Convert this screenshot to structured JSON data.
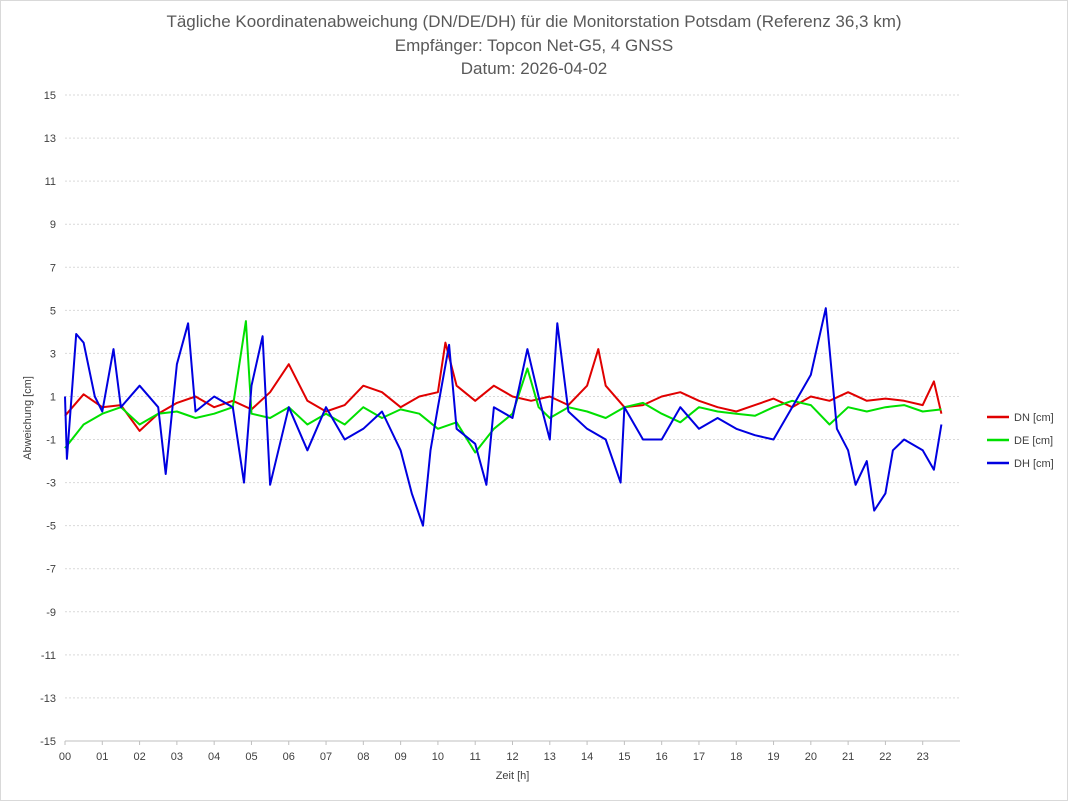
{
  "chart_data": {
    "type": "line",
    "title": "Tägliche Koordinatenabweichung (DN/DE/DH) für die Monitorstation Potsdam (Referenz 36,3 km)",
    "subtitle": "Empfänger: Topcon Net-G5, 4 GNSS",
    "date_line": "Datum: 2026-04-02",
    "xlabel": "Zeit [h]",
    "ylabel": "Abweichung [cm]",
    "xlim": [
      0,
      24
    ],
    "ylim": [
      -15,
      15
    ],
    "x_ticks": [
      "00",
      "01",
      "02",
      "03",
      "04",
      "05",
      "06",
      "07",
      "08",
      "09",
      "10",
      "11",
      "12",
      "13",
      "14",
      "15",
      "16",
      "17",
      "18",
      "19",
      "20",
      "21",
      "22",
      "23"
    ],
    "y_ticks": [
      "15",
      "13",
      "11",
      "9",
      "7",
      "5",
      "3",
      "1",
      "-1",
      "-3",
      "-5",
      "-7",
      "-9",
      "-11",
      "-13",
      "-15"
    ],
    "grid": true,
    "legend_position": "right",
    "series": [
      {
        "name": "DN [cm]",
        "color": "#e00000",
        "points": [
          [
            0,
            0.1
          ],
          [
            0.5,
            1.1
          ],
          [
            1,
            0.5
          ],
          [
            1.5,
            0.6
          ],
          [
            2,
            -0.6
          ],
          [
            2.5,
            0.2
          ],
          [
            3,
            0.7
          ],
          [
            3.5,
            1.0
          ],
          [
            4,
            0.5
          ],
          [
            4.5,
            0.8
          ],
          [
            5,
            0.4
          ],
          [
            5.5,
            1.2
          ],
          [
            6,
            2.5
          ],
          [
            6.5,
            0.8
          ],
          [
            7,
            0.3
          ],
          [
            7.5,
            0.6
          ],
          [
            8,
            1.5
          ],
          [
            8.5,
            1.2
          ],
          [
            9,
            0.5
          ],
          [
            9.5,
            1.0
          ],
          [
            10,
            1.2
          ],
          [
            10.2,
            3.5
          ],
          [
            10.5,
            1.5
          ],
          [
            11,
            0.8
          ],
          [
            11.5,
            1.5
          ],
          [
            12,
            1.0
          ],
          [
            12.5,
            0.8
          ],
          [
            13,
            1.0
          ],
          [
            13.5,
            0.6
          ],
          [
            14,
            1.5
          ],
          [
            14.3,
            3.2
          ],
          [
            14.5,
            1.5
          ],
          [
            15,
            0.5
          ],
          [
            15.5,
            0.6
          ],
          [
            16,
            1.0
          ],
          [
            16.5,
            1.2
          ],
          [
            17,
            0.8
          ],
          [
            17.5,
            0.5
          ],
          [
            18,
            0.3
          ],
          [
            18.5,
            0.6
          ],
          [
            19,
            0.9
          ],
          [
            19.5,
            0.5
          ],
          [
            20,
            1.0
          ],
          [
            20.5,
            0.8
          ],
          [
            21,
            1.2
          ],
          [
            21.5,
            0.8
          ],
          [
            22,
            0.9
          ],
          [
            22.5,
            0.8
          ],
          [
            23,
            0.6
          ],
          [
            23.3,
            1.7
          ],
          [
            23.5,
            0.2
          ]
        ]
      },
      {
        "name": "DE [cm]",
        "color": "#00e000",
        "points": [
          [
            0,
            -1.4
          ],
          [
            0.5,
            -0.3
          ],
          [
            1,
            0.2
          ],
          [
            1.5,
            0.5
          ],
          [
            2,
            -0.3
          ],
          [
            2.5,
            0.2
          ],
          [
            3,
            0.3
          ],
          [
            3.5,
            0.0
          ],
          [
            4,
            0.2
          ],
          [
            4.5,
            0.5
          ],
          [
            4.85,
            4.5
          ],
          [
            5,
            0.2
          ],
          [
            5.5,
            0.0
          ],
          [
            6,
            0.5
          ],
          [
            6.5,
            -0.3
          ],
          [
            7,
            0.2
          ],
          [
            7.5,
            -0.3
          ],
          [
            8,
            0.5
          ],
          [
            8.5,
            0.0
          ],
          [
            9,
            0.4
          ],
          [
            9.5,
            0.2
          ],
          [
            10,
            -0.5
          ],
          [
            10.5,
            -0.2
          ],
          [
            11,
            -1.6
          ],
          [
            11.5,
            -0.5
          ],
          [
            12,
            0.2
          ],
          [
            12.4,
            2.3
          ],
          [
            12.7,
            0.5
          ],
          [
            13,
            0.0
          ],
          [
            13.5,
            0.5
          ],
          [
            14,
            0.3
          ],
          [
            14.5,
            0.0
          ],
          [
            15,
            0.5
          ],
          [
            15.5,
            0.7
          ],
          [
            16,
            0.2
          ],
          [
            16.5,
            -0.2
          ],
          [
            17,
            0.5
          ],
          [
            17.5,
            0.3
          ],
          [
            18,
            0.2
          ],
          [
            18.5,
            0.1
          ],
          [
            19,
            0.5
          ],
          [
            19.5,
            0.8
          ],
          [
            20,
            0.6
          ],
          [
            20.5,
            -0.3
          ],
          [
            21,
            0.5
          ],
          [
            21.5,
            0.3
          ],
          [
            22,
            0.5
          ],
          [
            22.5,
            0.6
          ],
          [
            23,
            0.3
          ],
          [
            23.5,
            0.4
          ]
        ]
      },
      {
        "name": "DH [cm]",
        "color": "#0000e0",
        "points": [
          [
            0,
            1.0
          ],
          [
            0.05,
            -1.9
          ],
          [
            0.3,
            3.9
          ],
          [
            0.5,
            3.5
          ],
          [
            0.8,
            1.0
          ],
          [
            1,
            0.3
          ],
          [
            1.3,
            3.2
          ],
          [
            1.5,
            0.5
          ],
          [
            2,
            1.5
          ],
          [
            2.5,
            0.5
          ],
          [
            2.7,
            -2.6
          ],
          [
            3,
            2.5
          ],
          [
            3.3,
            4.4
          ],
          [
            3.5,
            0.3
          ],
          [
            4,
            1.0
          ],
          [
            4.5,
            0.5
          ],
          [
            4.8,
            -3.0
          ],
          [
            5,
            1.5
          ],
          [
            5.3,
            3.8
          ],
          [
            5.5,
            -3.1
          ],
          [
            6,
            0.5
          ],
          [
            6.5,
            -1.5
          ],
          [
            7,
            0.5
          ],
          [
            7.5,
            -1.0
          ],
          [
            8,
            -0.5
          ],
          [
            8.5,
            0.3
          ],
          [
            9,
            -1.5
          ],
          [
            9.3,
            -3.5
          ],
          [
            9.6,
            -5.0
          ],
          [
            9.8,
            -1.5
          ],
          [
            10,
            0.5
          ],
          [
            10.3,
            3.4
          ],
          [
            10.5,
            -0.5
          ],
          [
            11,
            -1.2
          ],
          [
            11.3,
            -3.1
          ],
          [
            11.5,
            0.5
          ],
          [
            12,
            0.0
          ],
          [
            12.4,
            3.2
          ],
          [
            12.7,
            1.0
          ],
          [
            13,
            -1.0
          ],
          [
            13.2,
            4.4
          ],
          [
            13.5,
            0.3
          ],
          [
            14,
            -0.5
          ],
          [
            14.5,
            -1.0
          ],
          [
            14.9,
            -3.0
          ],
          [
            15,
            0.5
          ],
          [
            15.5,
            -1.0
          ],
          [
            16,
            -1.0
          ],
          [
            16.5,
            0.5
          ],
          [
            17,
            -0.5
          ],
          [
            17.5,
            0.0
          ],
          [
            18,
            -0.5
          ],
          [
            18.5,
            -0.8
          ],
          [
            19,
            -1.0
          ],
          [
            19.5,
            0.5
          ],
          [
            20,
            2.0
          ],
          [
            20.4,
            5.1
          ],
          [
            20.7,
            -0.5
          ],
          [
            21,
            -1.5
          ],
          [
            21.2,
            -3.1
          ],
          [
            21.5,
            -2.0
          ],
          [
            21.7,
            -4.3
          ],
          [
            22,
            -3.5
          ],
          [
            22.2,
            -1.5
          ],
          [
            22.5,
            -1.0
          ],
          [
            23,
            -1.5
          ],
          [
            23.3,
            -2.4
          ],
          [
            23.5,
            -0.3
          ]
        ]
      }
    ]
  }
}
